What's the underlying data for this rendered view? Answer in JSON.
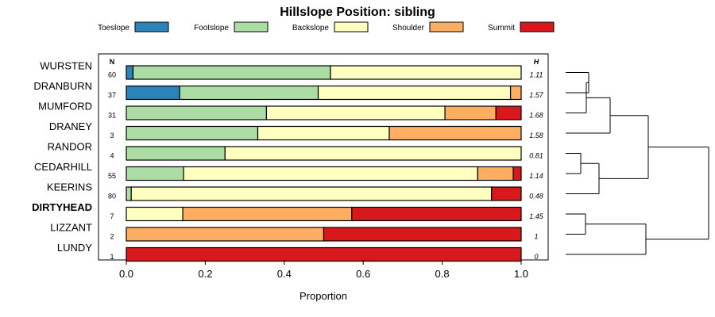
{
  "chart_data": {
    "type": "bar",
    "orientation": "horizontal",
    "stacked": true,
    "title": "Hillslope Position: sibling",
    "xlabel": "Proportion",
    "ylabel": "",
    "xlim": [
      0,
      1
    ],
    "x_ticks": [
      "0.0",
      "0.2",
      "0.4",
      "0.6",
      "0.8",
      "1.0"
    ],
    "legend_position": "top",
    "n_header": "N",
    "h_header": "H",
    "series": [
      {
        "name": "Toeslope",
        "color": "#2b83ba"
      },
      {
        "name": "Footslope",
        "color": "#abdda4"
      },
      {
        "name": "Backslope",
        "color": "#ffffbf"
      },
      {
        "name": "Shoulder",
        "color": "#fdae61"
      },
      {
        "name": "Summit",
        "color": "#d7191c"
      }
    ],
    "categories": [
      {
        "name": "WURSTEN",
        "n": "60",
        "h": "1.11",
        "bold": false,
        "values": [
          0.017,
          0.5,
          0.483,
          0,
          0
        ]
      },
      {
        "name": "DRANBURN",
        "n": "37",
        "h": "1.57",
        "bold": false,
        "values": [
          0.135,
          0.351,
          0.487,
          0.027,
          0
        ]
      },
      {
        "name": "MUMFORD",
        "n": "31",
        "h": "1.68",
        "bold": false,
        "values": [
          0,
          0.355,
          0.452,
          0.129,
          0.064
        ]
      },
      {
        "name": "DRANEY",
        "n": "3",
        "h": "1.58",
        "bold": false,
        "values": [
          0,
          0.333,
          0.333,
          0.334,
          0
        ]
      },
      {
        "name": "RANDOR",
        "n": "4",
        "h": "0.81",
        "bold": false,
        "values": [
          0,
          0.25,
          0.75,
          0,
          0
        ]
      },
      {
        "name": "CEDARHILL",
        "n": "55",
        "h": "1.14",
        "bold": false,
        "values": [
          0,
          0.145,
          0.745,
          0.09,
          0.02
        ]
      },
      {
        "name": "KEERINS",
        "n": "80",
        "h": "0.48",
        "bold": false,
        "values": [
          0,
          0.0125,
          0.9125,
          0,
          0.075
        ]
      },
      {
        "name": "DIRTYHEAD",
        "n": "7",
        "h": "1.45",
        "bold": true,
        "values": [
          0,
          0,
          0.143,
          0.428,
          0.429
        ]
      },
      {
        "name": "LIZZANT",
        "n": "2",
        "h": "1",
        "bold": false,
        "values": [
          0,
          0,
          0,
          0.5,
          0.5
        ]
      },
      {
        "name": "LUNDY",
        "n": "1",
        "h": "0",
        "bold": false,
        "values": [
          0,
          0,
          0,
          0,
          1
        ]
      }
    ]
  }
}
